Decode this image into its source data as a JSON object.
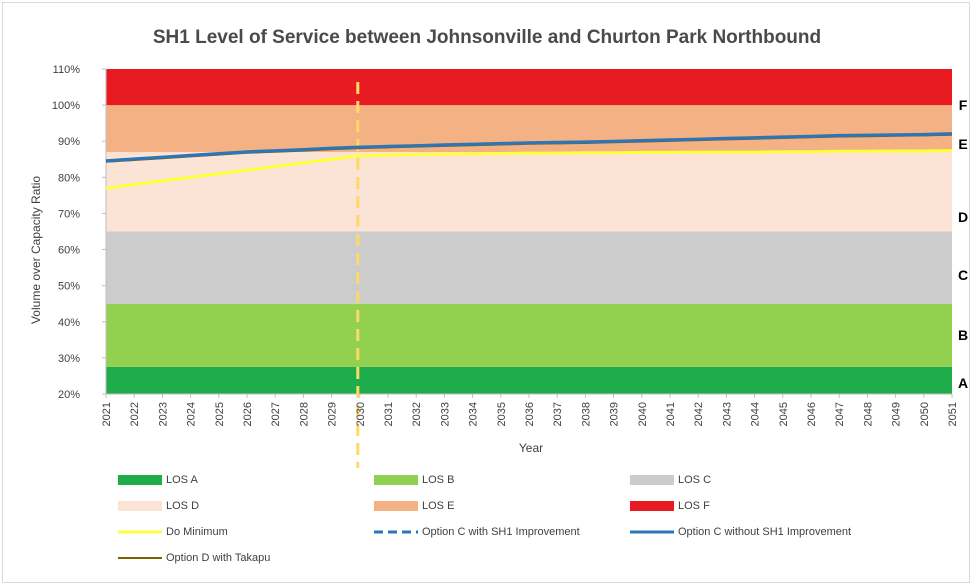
{
  "chart_data": {
    "type": "area",
    "title": "SH1 Level of Service between Johnsonville and Churton Park Northbound",
    "xlabel": "Year",
    "ylabel": "Volume over Capacity Ratio",
    "ylim": [
      20,
      110
    ],
    "yticks": [
      "20%",
      "30%",
      "40%",
      "50%",
      "60%",
      "70%",
      "80%",
      "90%",
      "100%",
      "110%"
    ],
    "x": [
      2021,
      2022,
      2023,
      2024,
      2025,
      2026,
      2027,
      2028,
      2029,
      2030,
      2031,
      2032,
      2033,
      2034,
      2035,
      2036,
      2037,
      2038,
      2039,
      2040,
      2041,
      2042,
      2043,
      2044,
      2045,
      2046,
      2047,
      2048,
      2049,
      2050,
      2051
    ],
    "bands": [
      {
        "name": "LOS A",
        "letter": "A",
        "from": 20,
        "to": 27.5,
        "color": "#1fad4b"
      },
      {
        "name": "LOS B",
        "letter": "B",
        "from": 27.5,
        "to": 45,
        "color": "#92d050"
      },
      {
        "name": "LOS C",
        "letter": "C",
        "from": 45,
        "to": 65,
        "color": "#cccccc"
      },
      {
        "name": "LOS D",
        "letter": "D",
        "from": 65,
        "to": 87,
        "color": "#fbe3d6"
      },
      {
        "name": "LOS E",
        "letter": "E",
        "from": 87,
        "to": 100,
        "color": "#f4b183"
      },
      {
        "name": "LOS F",
        "letter": "F",
        "from": 100,
        "to": 110,
        "color": "#e81b23"
      }
    ],
    "series": [
      {
        "name": "Do Minimum",
        "color": "#ffff3c",
        "style": "solid",
        "values": [
          77,
          78,
          79,
          80,
          81,
          82,
          83,
          84,
          85,
          86,
          86.2,
          86.3,
          86.4,
          86.5,
          86.6,
          86.7,
          86.7,
          86.8,
          86.8,
          86.9,
          86.9,
          87,
          87,
          87,
          87.1,
          87.1,
          87.2,
          87.2,
          87.3,
          87.3,
          87.4
        ]
      },
      {
        "name": "Option C with SH1 Improvement",
        "color": "#2e75b6",
        "style": "dashed",
        "values": [
          84.5,
          85,
          85.5,
          86,
          86.5,
          87,
          87.3,
          87.6,
          88,
          88.3,
          88.5,
          88.7,
          88.9,
          89.1,
          89.3,
          89.5,
          89.6,
          89.7,
          89.9,
          90.1,
          90.3,
          90.5,
          90.7,
          90.9,
          91.1,
          91.3,
          91.5,
          91.6,
          91.7,
          91.8,
          92
        ]
      },
      {
        "name": "Option C without SH1 Improvement",
        "color": "#2e75b6",
        "style": "solid",
        "values": [
          84.6,
          85.1,
          85.6,
          86.1,
          86.6,
          87.1,
          87.4,
          87.7,
          88.1,
          88.4,
          88.6,
          88.8,
          89,
          89.2,
          89.4,
          89.6,
          89.7,
          89.8,
          90,
          90.2,
          90.4,
          90.6,
          90.8,
          91,
          91.2,
          91.4,
          91.6,
          91.7,
          91.8,
          91.9,
          92.1
        ]
      },
      {
        "name": "Option D with Takapu",
        "color": "#7f6000",
        "style": "solid",
        "values": [
          84.3,
          84.8,
          85.3,
          85.8,
          86.3,
          86.8,
          87.1,
          87.4,
          87.8,
          88.1,
          88.3,
          88.5,
          88.7,
          88.9,
          89.1,
          89.3,
          89.4,
          89.5,
          89.7,
          89.9,
          90.1,
          90.3,
          90.5,
          90.7,
          90.9,
          91.1,
          91.3,
          91.4,
          91.5,
          91.6,
          91.8
        ]
      }
    ],
    "marker_year": 2030,
    "marker_color": "#ffd966",
    "legend_position": "bottom"
  }
}
